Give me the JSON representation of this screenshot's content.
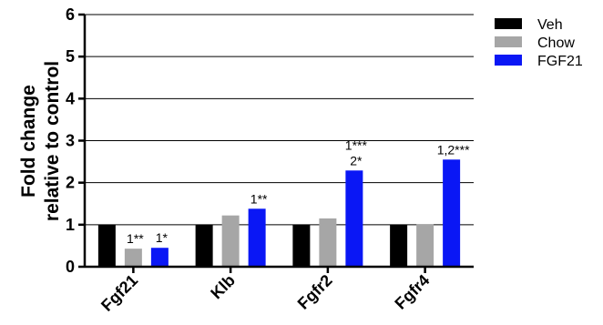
{
  "chart_data": {
    "type": "bar",
    "title": "",
    "ylabel": [
      "Fold change",
      "relative to control"
    ],
    "xlabel": "",
    "ylim": [
      0,
      6
    ],
    "yticks": [
      0,
      1,
      2,
      3,
      4,
      5,
      6
    ],
    "grid": true,
    "legend": "top-right",
    "categories": [
      "Fgf21",
      "Klb",
      "Fgfr2",
      "Fgfr4"
    ],
    "series": [
      {
        "name": "Veh",
        "color": "#000000",
        "values": [
          1.0,
          1.0,
          1.0,
          1.0
        ]
      },
      {
        "name": "Chow",
        "color": "#a6a6a6",
        "values": [
          0.43,
          1.22,
          1.15,
          1.01
        ]
      },
      {
        "name": "FGF21",
        "color": "#0a17f5",
        "values": [
          0.45,
          1.38,
          2.29,
          2.55
        ]
      }
    ],
    "annotations": [
      {
        "category": "Fgf21",
        "series": "Chow",
        "lines": [
          "1**"
        ]
      },
      {
        "category": "Fgf21",
        "series": "FGF21",
        "lines": [
          "1*"
        ]
      },
      {
        "category": "Klb",
        "series": "FGF21",
        "lines": [
          "1**"
        ]
      },
      {
        "category": "Fgfr2",
        "series": "FGF21",
        "lines": [
          "1***",
          "2*"
        ]
      },
      {
        "category": "Fgfr4",
        "series": "FGF21",
        "lines": [
          "1,2***"
        ]
      }
    ]
  }
}
